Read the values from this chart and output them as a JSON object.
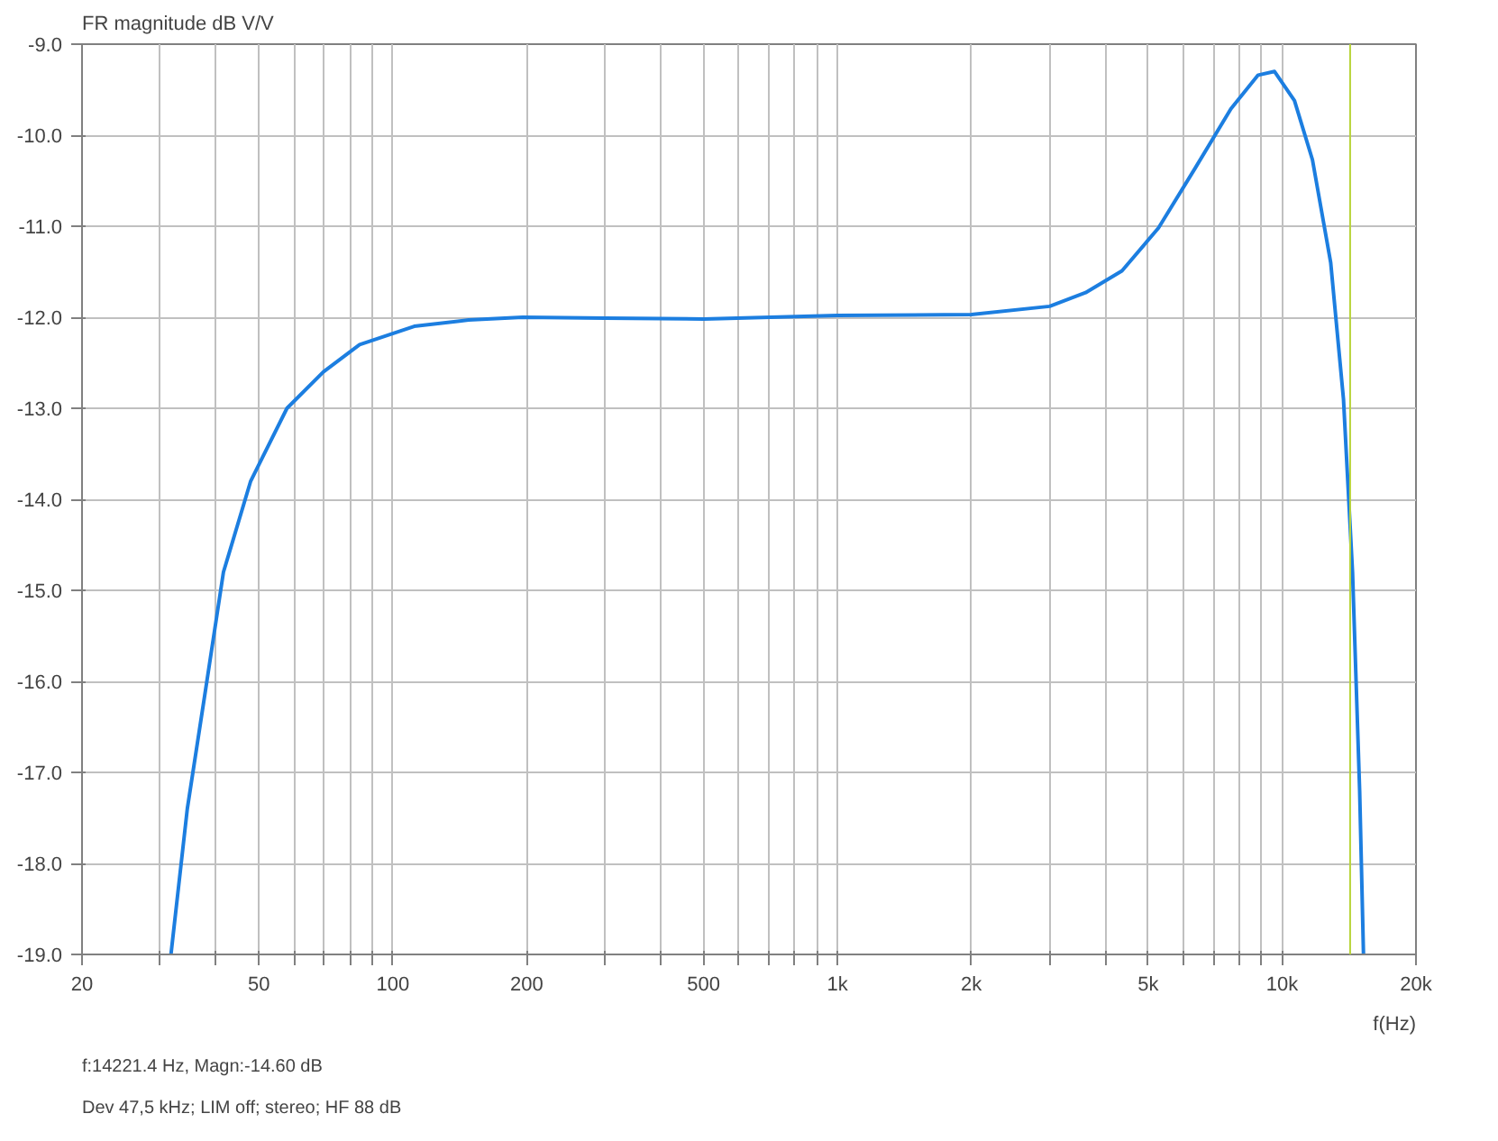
{
  "chart_data": {
    "type": "line",
    "ylabel": "FR magnitude dB V/V",
    "xlabel": "f(Hz)",
    "log": "x",
    "grid": true,
    "marker": "none",
    "line_style": "solid",
    "xlim": [
      20,
      20000
    ],
    "xticks": [
      20,
      {
        "value": 30,
        "label": null
      },
      {
        "value": 40,
        "label": null
      },
      50,
      {
        "value": 60,
        "label": null
      },
      {
        "value": 70,
        "label": null
      },
      {
        "value": 80,
        "label": null
      },
      {
        "value": 90,
        "label": null
      },
      100,
      200,
      {
        "value": 300,
        "label": null
      },
      {
        "value": 400,
        "label": null
      },
      500,
      {
        "value": 600,
        "label": null
      },
      {
        "value": 700,
        "label": null
      },
      {
        "value": 800,
        "label": null
      },
      {
        "value": 900,
        "label": null
      },
      {
        "value": 1000,
        "label": "1k"
      },
      {
        "value": 2000,
        "label": "2k"
      },
      {
        "value": 3000,
        "label": null
      },
      {
        "value": 4000,
        "label": null
      },
      {
        "value": 5000,
        "label": "5k"
      },
      {
        "value": 6000,
        "label": null
      },
      {
        "value": 7000,
        "label": null
      },
      {
        "value": 8000,
        "label": null
      },
      {
        "value": 9000,
        "label": null
      },
      {
        "value": 10000,
        "label": "10k"
      },
      {
        "value": 20000,
        "label": "20k"
      }
    ],
    "ylim": [
      -19,
      -9
    ],
    "yticks": [
      {
        "value": -9,
        "label": "-9.0"
      },
      {
        "value": -10,
        "label": "-10.0"
      },
      {
        "value": -11,
        "label": "-11.0"
      },
      {
        "value": -12,
        "label": "-12.0"
      },
      {
        "value": -13,
        "label": "-13.0"
      },
      {
        "value": -14,
        "label": "-14.0"
      },
      {
        "value": -15,
        "label": "-15.0"
      },
      {
        "value": -16,
        "label": "-16.0"
      },
      {
        "value": -17,
        "label": "-17.0"
      },
      {
        "value": -18,
        "label": "-18.0"
      },
      {
        "value": -19,
        "label": "-19.0"
      }
    ],
    "series": [
      {
        "color": "#1c7ee0",
        "x": [
          31.7,
          34.5,
          37.9,
          41.6,
          47.9,
          57.8,
          69.8,
          84.2,
          111.7,
          148,
          196,
          300,
          500,
          1000,
          2000,
          3000,
          3614,
          4364,
          5270,
          6360,
          7670,
          8830,
          9614,
          10660,
          11700,
          12860,
          13740,
          14400,
          14940,
          15240
        ],
        "values": [
          -19.0,
          -17.4,
          -16.1,
          -14.8,
          -13.8,
          -13.0,
          -12.6,
          -12.3,
          -12.1,
          -12.03,
          -12.0,
          -12.01,
          -12.02,
          -11.98,
          -11.97,
          -11.88,
          -11.73,
          -11.49,
          -11.02,
          -10.37,
          -9.71,
          -9.34,
          -9.3,
          -9.62,
          -10.27,
          -11.4,
          -12.9,
          -14.8,
          -17.2,
          -19.0
        ]
      }
    ],
    "ref_lines": [
      {
        "axis": "x",
        "value": 14221.4,
        "color": "#b8d43a"
      }
    ],
    "annotations": [
      "f:14221.4 Hz, Magn:-14.60 dB",
      "Dev 47,5 kHz; LIM off; stereo; HF 88 dB"
    ]
  }
}
